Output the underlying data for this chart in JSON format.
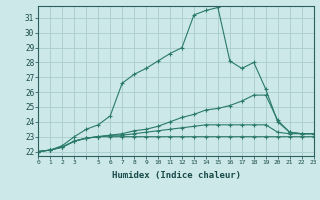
{
  "title": "",
  "xlabel": "Humidex (Indice chaleur)",
  "bg_color": "#cce8e8",
  "grid_color": "#aacccc",
  "line_color": "#2a7a6a",
  "xlim": [
    0,
    23
  ],
  "ylim": [
    21.7,
    31.8
  ],
  "yticks": [
    22,
    23,
    24,
    25,
    26,
    27,
    28,
    29,
    30,
    31
  ],
  "xtick_labels": [
    "0",
    "1",
    "2",
    "3",
    "",
    "5",
    "6",
    "7",
    "8",
    "9",
    "10",
    "11",
    "12",
    "13",
    "14",
    "15",
    "16",
    "17",
    "18",
    "19",
    "20",
    "21",
    "22",
    "23"
  ],
  "series": [
    [
      22.0,
      22.1,
      22.4,
      23.0,
      23.5,
      23.8,
      24.4,
      26.6,
      27.2,
      27.6,
      28.1,
      28.6,
      29.0,
      31.2,
      31.5,
      31.7,
      28.1,
      27.6,
      28.0,
      26.2,
      24.0,
      23.3,
      23.2,
      23.2
    ],
    [
      22.0,
      22.1,
      22.3,
      22.7,
      22.9,
      23.0,
      23.1,
      23.2,
      23.4,
      23.5,
      23.7,
      24.0,
      24.3,
      24.5,
      24.8,
      24.9,
      25.1,
      25.4,
      25.8,
      25.8,
      24.1,
      23.3,
      23.2,
      23.2
    ],
    [
      22.0,
      22.1,
      22.3,
      22.7,
      22.9,
      23.0,
      23.1,
      23.1,
      23.2,
      23.3,
      23.4,
      23.5,
      23.6,
      23.7,
      23.8,
      23.8,
      23.8,
      23.8,
      23.8,
      23.8,
      23.3,
      23.2,
      23.2,
      23.2
    ],
    [
      22.0,
      22.1,
      22.3,
      22.7,
      22.9,
      23.0,
      23.0,
      23.0,
      23.0,
      23.0,
      23.0,
      23.0,
      23.0,
      23.0,
      23.0,
      23.0,
      23.0,
      23.0,
      23.0,
      23.0,
      23.0,
      23.0,
      23.0,
      23.0
    ]
  ]
}
